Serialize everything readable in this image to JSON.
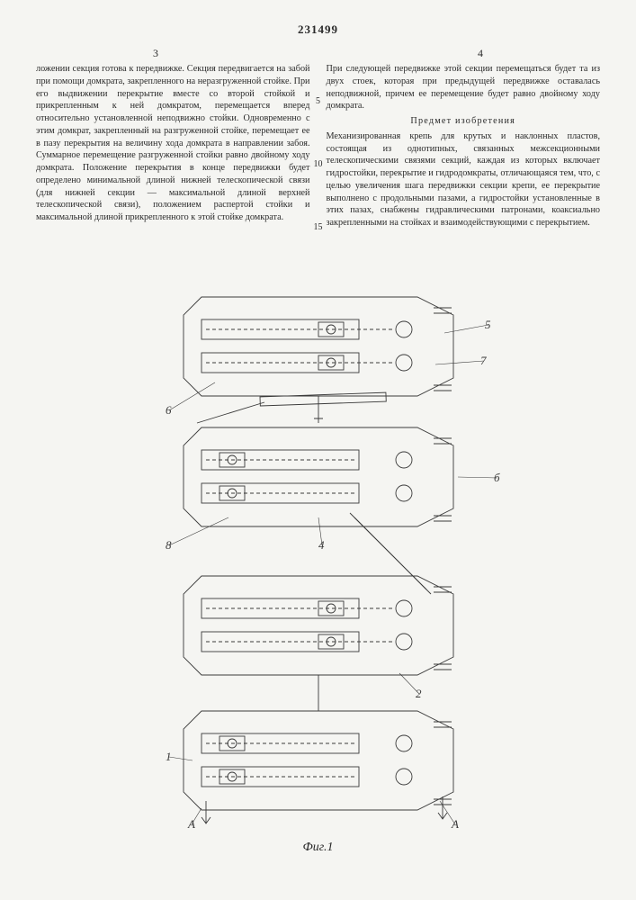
{
  "patent_number": "231499",
  "col_left_num": "3",
  "col_right_num": "4",
  "line_numbers": [
    "",
    "",
    "5",
    "",
    "",
    "",
    "",
    "10",
    "",
    "",
    "",
    "",
    "15"
  ],
  "left_col": "ложении секция готова к передвижке. Секция передвигается на забой при помощи домкрата, закрепленного на неразгруженной стойке. При его выдвижении перекрытие вместе со второй стойкой и прикрепленным к ней домкратом, перемещается вперед относительно установленной неподвижно стойки. Одновременно с этим домкрат, закрепленный на разгруженной стойке, перемещает ее в пазу перекрытия на величину хода домкрата в направлении забоя. Суммарное перемещение разгруженной стойки равно двойному ходу домкрата. Положение перекрытия в конце передвижки будет определено минимальной длиной нижней телескопической связи (для нижней секции — максимальной длиной верхней телескопической связи), положением распертой стойки и максимальной длиной прикрепленного к этой стойке домкрата.",
  "right_col_p1": "При следующей передвижке этой секции перемещаться будет та из двух стоек, которая при предыдущей передвижке оставалась неподвижной, причем ее перемещение будет равно двойному ходу домкрата.",
  "right_heading": "Предмет изобретения",
  "right_col_p2": "Механизированная крепь для крутых и наклонных пластов, состоящая из однотипных, связанных межсекционными телескопическими связями секций, каждая из которых включает гидростойки, перекрытие и гидродомкраты, отличающаяся тем, что, с целью увеличения шага передвижки секции крепи, ее перекрытие выполнено с продольными пазами, а гидростойки установленные в этих пазах, снабжены гидравлическими патронами, коаксиально закрепленными на стойках и взаимодействующими с перекрытием.",
  "figure": {
    "label": "Фиг.1",
    "stroke": "#3a3a3a",
    "stroke_width": 0.9,
    "bg": "#f5f5f2",
    "ref_labels": [
      "1",
      "2",
      "5",
      "6",
      "7",
      "8",
      "A",
      "A",
      "б"
    ],
    "sections": 4
  }
}
